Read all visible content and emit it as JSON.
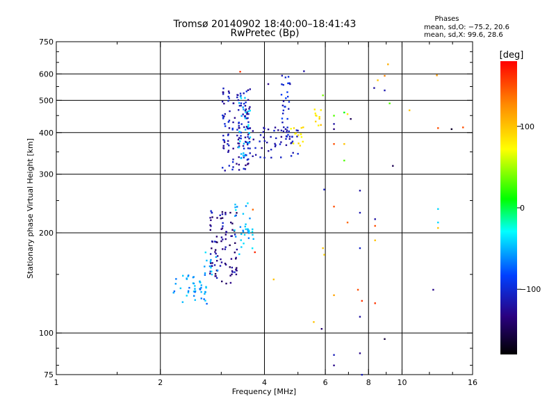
{
  "chart_data": {
    "type": "scatter",
    "title": "Tromsø 20140902 18:40:00–18:41:43",
    "subtitle": "RwPretec (Bp)",
    "xlabel": "Frequency [MHz]",
    "ylabel": "Stationary phase Virtual Height [km]",
    "xscale": "log",
    "yscale": "log",
    "xlim": [
      1,
      16
    ],
    "ylim": [
      75,
      750
    ],
    "x_ticks": [
      1,
      2,
      4,
      6,
      8,
      10,
      16
    ],
    "y_ticks": [
      75,
      100,
      200,
      300,
      400,
      500,
      600,
      750
    ],
    "x_gridlines": [
      2,
      4,
      6,
      8,
      10
    ],
    "y_gridlines": [
      100,
      200,
      300,
      400,
      500,
      600
    ],
    "grid": true,
    "phase_info": {
      "heading": "Phases",
      "line1": "mean, sd,O: −75.2, 20.6",
      "line2": "mean, sd,X:  99.6, 28.6"
    },
    "colorbar": {
      "label": "[deg]",
      "range": [
        -180,
        180
      ],
      "tick_values": [
        100,
        0,
        -100
      ],
      "tick_labels": [
        "100",
        "0",
        "−100"
      ]
    },
    "point_series": [
      {
        "x": [
          3.05,
          3.15,
          3.25,
          3.35,
          3.4,
          3.5,
          3.55,
          3.6
        ],
        "y_range": [
          305,
          545
        ],
        "count": 130,
        "phase_range": [
          -135,
          -95
        ]
      },
      {
        "x": [
          3.4,
          3.5,
          3.6
        ],
        "y_range": [
          330,
          520
        ],
        "count": 30,
        "phase_range": [
          -60,
          -30
        ]
      },
      {
        "x": [
          3.6,
          3.7,
          3.8,
          3.9,
          4.0,
          4.1,
          4.2,
          4.3,
          4.4,
          4.5,
          4.6,
          4.7,
          4.8,
          5.0
        ],
        "y_range": [
          335,
          415
        ],
        "count": 55,
        "phase_range": [
          -130,
          -100
        ]
      },
      {
        "x": [
          4.5,
          4.6,
          4.7
        ],
        "y_range": [
          380,
          630
        ],
        "count": 30,
        "phase_range": [
          -120,
          -80
        ]
      },
      {
        "x": [
          4.8,
          4.9,
          5.0,
          5.1,
          5.2
        ],
        "y_range": [
          365,
          420
        ],
        "count": 14,
        "phase_range": [
          60,
          95
        ]
      },
      {
        "x": [
          5.6,
          5.7,
          5.8
        ],
        "y_range": [
          420,
          470
        ],
        "count": 10,
        "phase_range": [
          75,
          110
        ]
      },
      {
        "x": [
          2.8,
          2.9,
          3.0,
          3.1,
          3.2,
          3.3
        ],
        "y_range": [
          140,
          235
        ],
        "count": 95,
        "phase_range": [
          -150,
          -100
        ]
      },
      {
        "x": [
          3.3,
          3.4,
          3.5,
          3.6,
          3.7
        ],
        "y_range": [
          165,
          250
        ],
        "count": 35,
        "phase_range": [
          -70,
          -30
        ]
      },
      {
        "x": [
          2.2,
          2.3,
          2.4,
          2.5,
          2.6,
          2.7
        ],
        "y_range": [
          122,
          150
        ],
        "count": 45,
        "phase_range": [
          -75,
          -40
        ]
      },
      {
        "x": [
          2.7,
          2.8,
          2.9
        ],
        "y_range": [
          148,
          178
        ],
        "count": 12,
        "phase_range": [
          -65,
          -35
        ]
      }
    ],
    "scattered_points": [
      {
        "x": 3.4,
        "y": 610,
        "phase": 160
      },
      {
        "x": 3.7,
        "y": 235,
        "phase": 140
      },
      {
        "x": 3.75,
        "y": 175,
        "phase": 165
      },
      {
        "x": 4.1,
        "y": 560,
        "phase": -130
      },
      {
        "x": 4.25,
        "y": 145,
        "phase": 100
      },
      {
        "x": 5.2,
        "y": 612,
        "phase": -120
      },
      {
        "x": 5.55,
        "y": 108,
        "phase": 100
      },
      {
        "x": 5.9,
        "y": 518,
        "phase": 40
      },
      {
        "x": 5.95,
        "y": 270,
        "phase": -110
      },
      {
        "x": 5.95,
        "y": 172,
        "phase": 95
      },
      {
        "x": 5.9,
        "y": 180,
        "phase": 100
      },
      {
        "x": 5.85,
        "y": 103,
        "phase": -140
      },
      {
        "x": 6.35,
        "y": 450,
        "phase": 30
      },
      {
        "x": 6.35,
        "y": 425,
        "phase": -120
      },
      {
        "x": 6.35,
        "y": 410,
        "phase": -135
      },
      {
        "x": 6.35,
        "y": 370,
        "phase": 150
      },
      {
        "x": 6.35,
        "y": 240,
        "phase": 150
      },
      {
        "x": 6.35,
        "y": 130,
        "phase": 115
      },
      {
        "x": 6.35,
        "y": 86,
        "phase": -110
      },
      {
        "x": 6.35,
        "y": 80,
        "phase": -130
      },
      {
        "x": 6.8,
        "y": 460,
        "phase": 10
      },
      {
        "x": 6.8,
        "y": 330,
        "phase": 30
      },
      {
        "x": 6.8,
        "y": 370,
        "phase": 100
      },
      {
        "x": 6.95,
        "y": 215,
        "phase": 140
      },
      {
        "x": 6.95,
        "y": 455,
        "phase": 85
      },
      {
        "x": 7.1,
        "y": 440,
        "phase": -150
      },
      {
        "x": 7.55,
        "y": 268,
        "phase": -120
      },
      {
        "x": 7.55,
        "y": 230,
        "phase": -115
      },
      {
        "x": 7.55,
        "y": 180,
        "phase": -105
      },
      {
        "x": 7.55,
        "y": 112,
        "phase": -120
      },
      {
        "x": 7.55,
        "y": 87,
        "phase": -130
      },
      {
        "x": 7.45,
        "y": 135,
        "phase": 150
      },
      {
        "x": 7.65,
        "y": 125,
        "phase": 160
      },
      {
        "x": 7.65,
        "y": 75,
        "phase": -110
      },
      {
        "x": 8.3,
        "y": 545,
        "phase": -120
      },
      {
        "x": 8.35,
        "y": 220,
        "phase": -120
      },
      {
        "x": 8.35,
        "y": 210,
        "phase": 150
      },
      {
        "x": 8.35,
        "y": 190,
        "phase": 100
      },
      {
        "x": 8.35,
        "y": 123,
        "phase": 160
      },
      {
        "x": 8.5,
        "y": 575,
        "phase": 100
      },
      {
        "x": 8.9,
        "y": 593,
        "phase": 130
      },
      {
        "x": 8.9,
        "y": 536,
        "phase": -115
      },
      {
        "x": 8.9,
        "y": 96,
        "phase": -160
      },
      {
        "x": 9.1,
        "y": 642,
        "phase": 110
      },
      {
        "x": 9.2,
        "y": 490,
        "phase": 30
      },
      {
        "x": 9.4,
        "y": 318,
        "phase": -150
      },
      {
        "x": 10.5,
        "y": 467,
        "phase": 100
      },
      {
        "x": 12.6,
        "y": 595,
        "phase": 120
      },
      {
        "x": 12.7,
        "y": 413,
        "phase": 150
      },
      {
        "x": 12.7,
        "y": 236,
        "phase": -40
      },
      {
        "x": 12.7,
        "y": 215,
        "phase": -40
      },
      {
        "x": 12.7,
        "y": 207,
        "phase": 100
      },
      {
        "x": 12.3,
        "y": 135,
        "phase": -130
      },
      {
        "x": 13.9,
        "y": 410,
        "phase": -165
      },
      {
        "x": 15.0,
        "y": 415,
        "phase": 150
      }
    ]
  }
}
